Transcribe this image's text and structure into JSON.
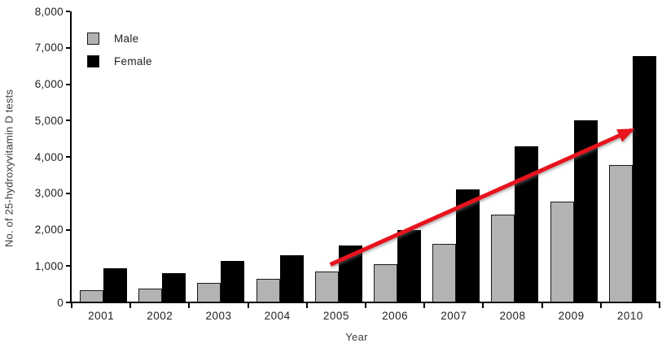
{
  "chart_data": {
    "type": "bar",
    "title": "",
    "xlabel": "Year",
    "ylabel": "No. of 25-hydroxyvitamin D tests",
    "categories": [
      "2001",
      "2002",
      "2003",
      "2004",
      "2005",
      "2006",
      "2007",
      "2008",
      "2009",
      "2010"
    ],
    "series": [
      {
        "name": "Male",
        "color": "#b3b3b3",
        "border": "#1a1a1a",
        "values": [
          330,
          370,
          530,
          650,
          860,
          1050,
          1620,
          2420,
          2780,
          3770
        ]
      },
      {
        "name": "Female",
        "color": "#000000",
        "border": "#000000",
        "values": [
          930,
          810,
          1140,
          1300,
          1560,
          2000,
          3100,
          4300,
          5000,
          6780
        ]
      }
    ],
    "ylim": [
      0,
      8000
    ],
    "ytick_step": 1000,
    "ytick_labels": [
      "0",
      "1,000",
      "2,000",
      "3,000",
      "4,000",
      "5,000",
      "6,000",
      "7,000",
      "8,000"
    ],
    "grid": false,
    "legend_position": "top-left",
    "annotations": [
      {
        "type": "arrow",
        "color": "#e8131d",
        "x_start_index": 4.4,
        "y_start": 1040,
        "x_end_index": 9.53,
        "y_end": 4740
      }
    ]
  }
}
